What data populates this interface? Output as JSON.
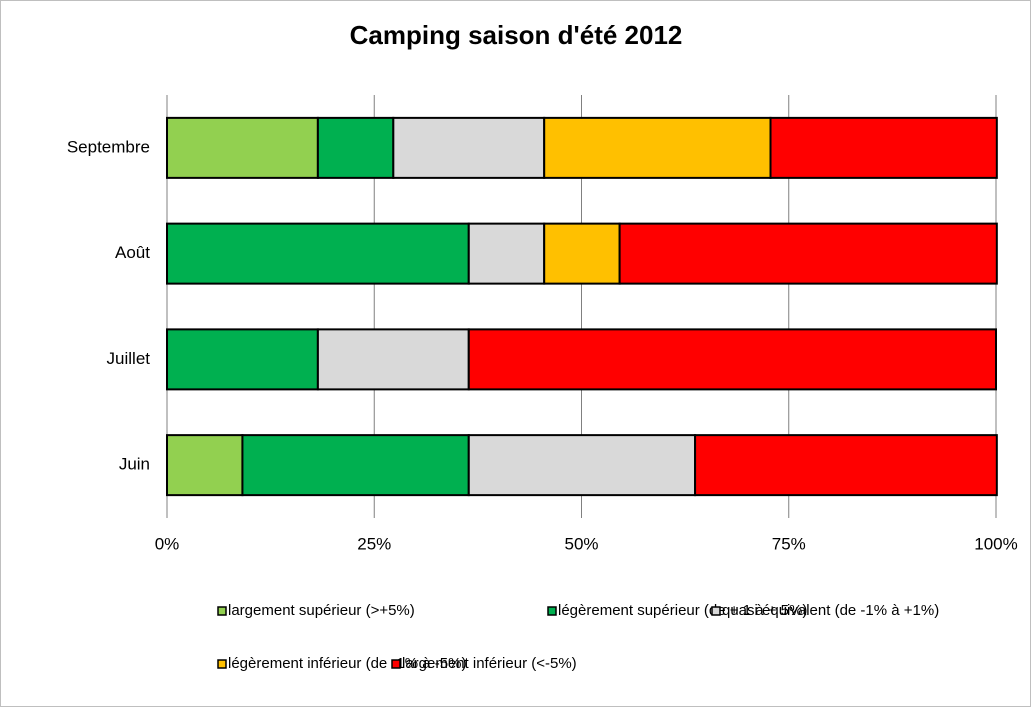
{
  "chart_data": {
    "type": "stacked-barh",
    "title": "Camping saison d'été 2012",
    "categories": [
      "Septembre",
      "Août",
      "Juillet",
      "Juin"
    ],
    "series": [
      {
        "name": "largement supérieur (>+5%)",
        "color": "#92d050",
        "values": [
          18.2,
          0,
          0,
          9.1
        ]
      },
      {
        "name": "légèrement supérieur (de + 1 à + 5%)",
        "color": "#00b050",
        "values": [
          9.1,
          36.4,
          18.2,
          27.3
        ]
      },
      {
        "name": "quasi équivalent (de  -1% à +1%)",
        "color": "#d9d9d9",
        "values": [
          18.2,
          9.1,
          18.2,
          27.3
        ]
      },
      {
        "name": "légèrement inférieur (de -1% à -5%)",
        "color": "#ffc000",
        "values": [
          27.3,
          9.1,
          0,
          0
        ]
      },
      {
        "name": "largement inférieur (<-5%)",
        "color": "#ff0000",
        "values": [
          27.3,
          45.5,
          63.6,
          36.4
        ]
      }
    ],
    "xlim": [
      0,
      100
    ],
    "xticks": [
      {
        "value": 0,
        "label": "0%"
      },
      {
        "value": 25,
        "label": "25%"
      },
      {
        "value": 50,
        "label": "50%"
      },
      {
        "value": 75,
        "label": "75%"
      },
      {
        "value": 100,
        "label": "100%"
      }
    ],
    "grid": true,
    "legend": "bottom"
  }
}
